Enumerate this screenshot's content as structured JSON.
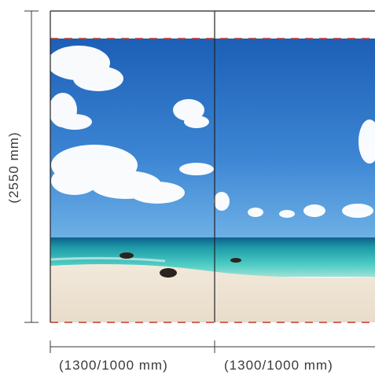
{
  "dimensions": {
    "height_label": "(2550 mm)",
    "panel_width_labels": [
      "(1300/1000 mm)",
      "(1300/1000 mm)"
    ]
  },
  "photo": {
    "subject": "tropical beach with blue sky, clouds, turquoise sea, white sand and dark rocks",
    "colors": {
      "sky_top": "#1f63b8",
      "sky_bottom": "#5aa2e0",
      "sea": "#2cb6b8",
      "sand": "#efe6d6",
      "trim_line": "#c0392b"
    }
  },
  "colors": {
    "lines": "#3a3a3a",
    "panel_divider": "#222222"
  }
}
